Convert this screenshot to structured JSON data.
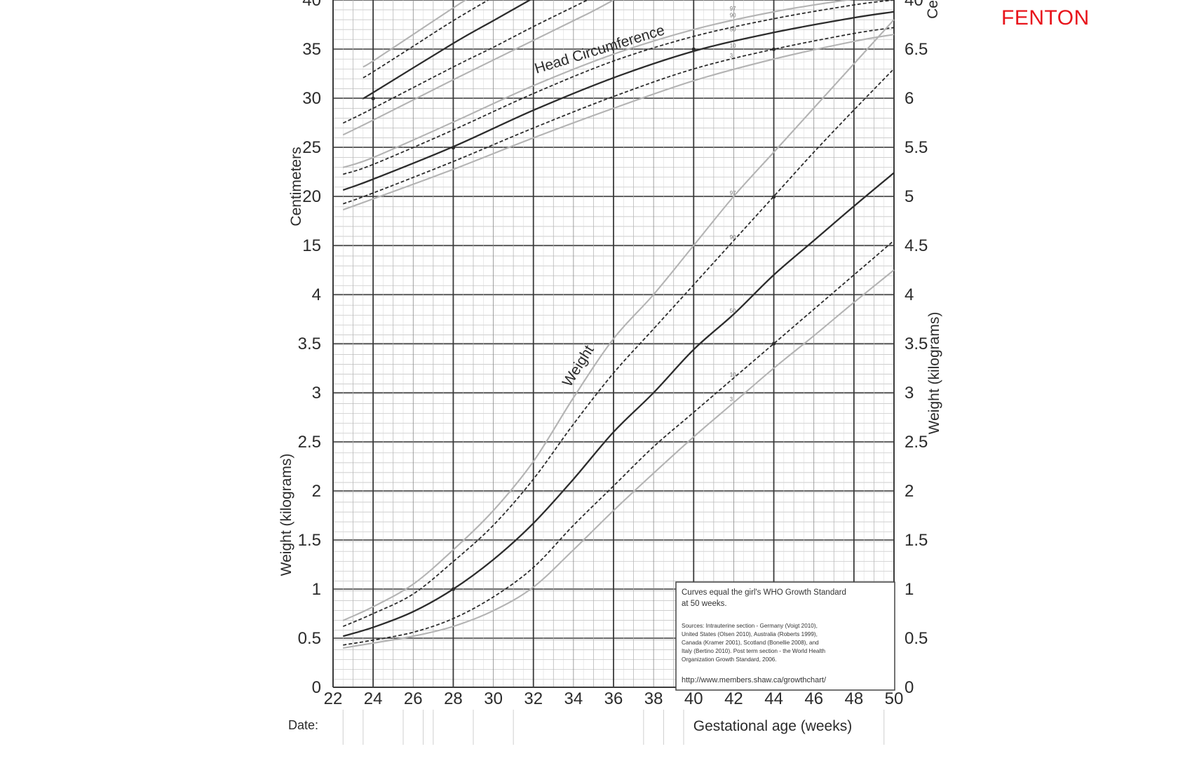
{
  "corner_label": "FENTON",
  "chart_data": {
    "type": "line",
    "x": {
      "label": "Gestational age (weeks)",
      "range": [
        22,
        50
      ],
      "ticks": [
        22,
        24,
        26,
        28,
        30,
        32,
        34,
        36,
        38,
        40,
        42,
        44,
        46,
        48,
        50
      ]
    },
    "left_axis": {
      "head_label": "Centimeters",
      "weight_label": "Weight (kilograms)",
      "ticks": [
        "40",
        "35",
        "30",
        "25",
        "20",
        "15",
        "4",
        "3.5",
        "3",
        "2.5",
        "2",
        "1.5",
        "1",
        "0.5",
        "0"
      ]
    },
    "right_axis": {
      "head_label": "Ce",
      "weight_label": "Weight (kilograms)",
      "ticks": [
        "40",
        "6.5",
        "6",
        "5.5",
        "5",
        "4.5",
        "4",
        "3.5",
        "3",
        "2.5",
        "2",
        "1.5",
        "1",
        "0.5",
        "0"
      ]
    },
    "grid": true,
    "date_row_label": "Date:",
    "head_circumference": {
      "title": "Head Circumference",
      "unit": "cm",
      "series": [
        {
          "name": "3",
          "style": "light",
          "points": [
            [
              22.5,
              18.7
            ],
            [
              24,
              19.8
            ],
            [
              28,
              22.8
            ],
            [
              32,
              26.0
            ],
            [
              36,
              29.0
            ],
            [
              40,
              31.8
            ],
            [
              44,
              34.0
            ],
            [
              48,
              35.8
            ],
            [
              50,
              36.5
            ]
          ]
        },
        {
          "name": "10",
          "style": "dashed",
          "points": [
            [
              22.5,
              19.3
            ],
            [
              24,
              20.4
            ],
            [
              28,
              23.6
            ],
            [
              32,
              27.0
            ],
            [
              36,
              30.2
            ],
            [
              40,
              33.0
            ],
            [
              44,
              35.0
            ],
            [
              48,
              36.6
            ],
            [
              50,
              37.2
            ]
          ]
        },
        {
          "name": "50",
          "style": "solid",
          "points": [
            [
              22.5,
              20.7
            ],
            [
              24,
              21.8
            ],
            [
              28,
              25.1
            ],
            [
              32,
              28.8
            ],
            [
              36,
              32.1
            ],
            [
              40,
              34.8
            ],
            [
              44,
              36.7
            ],
            [
              48,
              38.2
            ],
            [
              50,
              38.8
            ]
          ]
        },
        {
          "name": "90",
          "style": "dashed",
          "points": [
            [
              22.5,
              22.3
            ],
            [
              24,
              23.3
            ],
            [
              28,
              26.8
            ],
            [
              32,
              30.5
            ],
            [
              36,
              33.8
            ],
            [
              40,
              36.3
            ],
            [
              44,
              38.1
            ],
            [
              48,
              39.5
            ],
            [
              50,
              40.0
            ]
          ]
        },
        {
          "name": "97",
          "style": "light",
          "points": [
            [
              22.5,
              23.0
            ],
            [
              24,
              24.0
            ],
            [
              28,
              27.6
            ],
            [
              32,
              31.3
            ],
            [
              36,
              34.5
            ],
            [
              40,
              37.0
            ],
            [
              44,
              38.8
            ],
            [
              48,
              40.1
            ],
            [
              50,
              40.5
            ]
          ]
        }
      ]
    },
    "length": {
      "unit": "cm",
      "series": [
        {
          "name": "3",
          "style": "light",
          "points": [
            [
              22.5,
              26.3
            ],
            [
              24,
              27.8
            ],
            [
              28,
              31.9
            ],
            [
              30,
              33.9
            ],
            [
              32,
              35.9
            ],
            [
              34,
              37.9
            ],
            [
              35,
              38.9
            ],
            [
              36,
              40.0
            ]
          ]
        },
        {
          "name": "10",
          "style": "dashed",
          "points": [
            [
              22.5,
              27.5
            ],
            [
              24,
              29.0
            ],
            [
              28,
              33.2
            ],
            [
              30,
              35.2
            ],
            [
              32,
              37.3
            ],
            [
              34,
              39.3
            ],
            [
              35,
              40.3
            ]
          ]
        },
        {
          "name": "50",
          "style": "solid",
          "points": [
            [
              23.5,
              30.0
            ],
            [
              24,
              30.6
            ],
            [
              28,
              35.6
            ],
            [
              30,
              37.9
            ],
            [
              32,
              40.2
            ]
          ]
        },
        {
          "name": "90",
          "style": "dashed",
          "points": [
            [
              23.5,
              32.1
            ],
            [
              24,
              32.7
            ],
            [
              26,
              35.3
            ],
            [
              28,
              37.9
            ],
            [
              30,
              40.3
            ]
          ]
        },
        {
          "name": "97",
          "style": "light",
          "points": [
            [
              23.5,
              33.2
            ],
            [
              24,
              33.8
            ],
            [
              26,
              36.5
            ],
            [
              28,
              39.2
            ],
            [
              29,
              40.5
            ]
          ]
        }
      ]
    },
    "weight": {
      "title": "Weight",
      "unit": "kg",
      "series": [
        {
          "name": "3",
          "style": "light",
          "points": [
            [
              22.5,
              0.4
            ],
            [
              24,
              0.45
            ],
            [
              26,
              0.52
            ],
            [
              28,
              0.62
            ],
            [
              30,
              0.78
            ],
            [
              32,
              1.02
            ],
            [
              34,
              1.4
            ],
            [
              36,
              1.8
            ],
            [
              38,
              2.18
            ],
            [
              40,
              2.55
            ],
            [
              42,
              2.9
            ],
            [
              44,
              3.25
            ],
            [
              46,
              3.58
            ],
            [
              48,
              3.92
            ],
            [
              50,
              4.25
            ]
          ]
        },
        {
          "name": "10",
          "style": "dashed",
          "points": [
            [
              22.5,
              0.43
            ],
            [
              24,
              0.48
            ],
            [
              26,
              0.56
            ],
            [
              28,
              0.7
            ],
            [
              30,
              0.92
            ],
            [
              32,
              1.22
            ],
            [
              34,
              1.65
            ],
            [
              36,
              2.05
            ],
            [
              38,
              2.45
            ],
            [
              40,
              2.8
            ],
            [
              42,
              3.15
            ],
            [
              44,
              3.5
            ],
            [
              46,
              3.85
            ],
            [
              48,
              4.2
            ],
            [
              50,
              4.55
            ]
          ]
        },
        {
          "name": "50",
          "style": "solid",
          "points": [
            [
              22.5,
              0.52
            ],
            [
              24,
              0.61
            ],
            [
              26,
              0.77
            ],
            [
              28,
              1.0
            ],
            [
              30,
              1.3
            ],
            [
              32,
              1.67
            ],
            [
              34,
              2.12
            ],
            [
              36,
              2.6
            ],
            [
              38,
              3.0
            ],
            [
              40,
              3.44
            ],
            [
              42,
              3.8
            ],
            [
              44,
              4.2
            ],
            [
              46,
              4.55
            ],
            [
              48,
              4.9
            ],
            [
              50,
              5.24
            ]
          ]
        },
        {
          "name": "90",
          "style": "dashed",
          "points": [
            [
              22.5,
              0.62
            ],
            [
              24,
              0.75
            ],
            [
              26,
              0.95
            ],
            [
              28,
              1.28
            ],
            [
              30,
              1.65
            ],
            [
              32,
              2.12
            ],
            [
              34,
              2.68
            ],
            [
              36,
              3.2
            ],
            [
              38,
              3.65
            ],
            [
              40,
              4.1
            ],
            [
              42,
              4.55
            ],
            [
              44,
              5.0
            ],
            [
              46,
              5.45
            ],
            [
              48,
              5.88
            ],
            [
              50,
              6.3
            ]
          ]
        },
        {
          "name": "97",
          "style": "light",
          "points": [
            [
              22.5,
              0.68
            ],
            [
              24,
              0.82
            ],
            [
              26,
              1.05
            ],
            [
              28,
              1.4
            ],
            [
              30,
              1.8
            ],
            [
              32,
              2.3
            ],
            [
              34,
              2.95
            ],
            [
              36,
              3.55
            ],
            [
              38,
              4.0
            ],
            [
              40,
              4.5
            ],
            [
              42,
              5.0
            ],
            [
              44,
              5.45
            ],
            [
              46,
              5.9
            ],
            [
              48,
              6.35
            ],
            [
              50,
              6.8
            ]
          ]
        }
      ]
    },
    "note": {
      "headline_1": "Curves equal the girl's WHO Growth Standard",
      "headline_2": "at 50 weeks.",
      "sources_1": "Sources: Intrauterine section - Germany (Voigt 2010),",
      "sources_2": "United States (Olsen 2010), Australia (Roberts 1999),",
      "sources_3": "Canada (Kramer 2001), Scotland (Bonellie 2008), and",
      "sources_4": "Italy (Bertino 2010). Post term section - the World Health",
      "sources_5": "Organization Growth Standard, 2006.",
      "url": "http://www.members.shaw.ca/growthchart/"
    }
  }
}
